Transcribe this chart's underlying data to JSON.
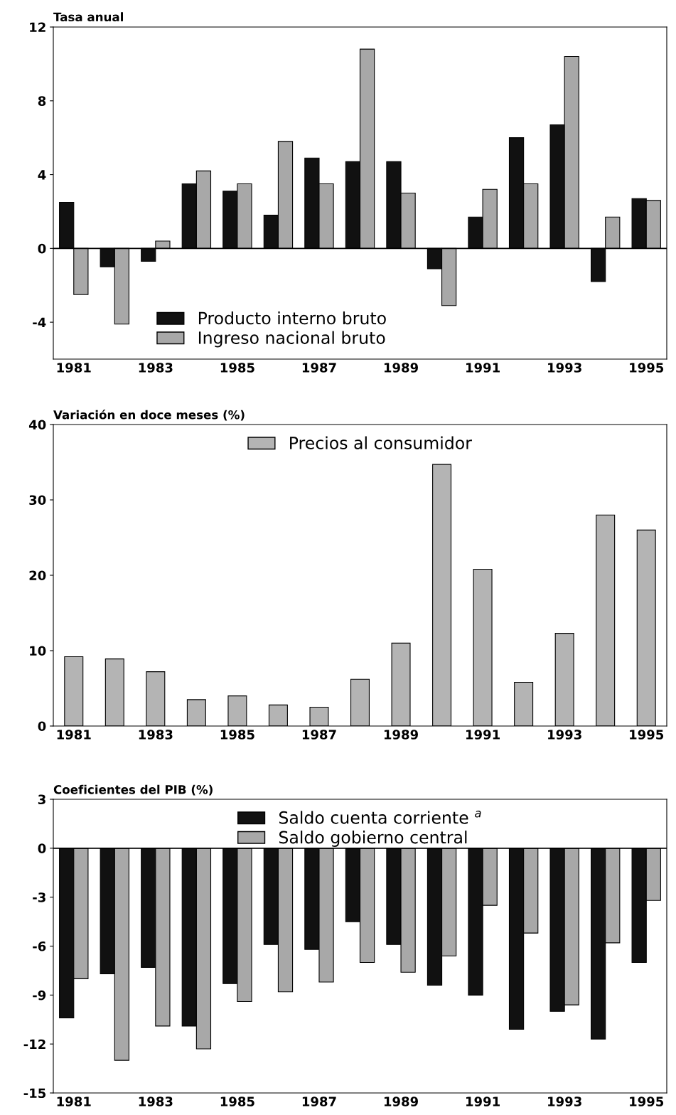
{
  "chart_data": [
    {
      "type": "bar",
      "ylabel": "Tasa anual",
      "categories": [
        "1981",
        null,
        "1983",
        null,
        "1985",
        null,
        "1987",
        null,
        "1989",
        null,
        "1991",
        null,
        "1993",
        null,
        "1995"
      ],
      "series": [
        {
          "name": "Producto interno bruto",
          "color": "#111111",
          "values": [
            2.5,
            -1.0,
            -0.7,
            3.5,
            3.1,
            1.8,
            4.9,
            4.7,
            4.7,
            -1.1,
            1.7,
            6.0,
            6.7,
            -1.8,
            2.7
          ]
        },
        {
          "name": "Ingreso nacional bruto",
          "color": "#a8a8a8",
          "values": [
            -2.5,
            -4.1,
            0.4,
            4.2,
            3.5,
            5.8,
            3.5,
            10.8,
            3.0,
            -3.1,
            3.2,
            3.5,
            10.4,
            1.7,
            2.6
          ]
        }
      ],
      "ylim": [
        -6,
        12
      ],
      "yticks": [
        -4,
        0,
        4,
        8,
        12
      ],
      "ref_lines": [
        {
          "axis": "y",
          "value": 0
        }
      ],
      "legend": "bottom left",
      "grid": false
    },
    {
      "type": "bar",
      "ylabel": "Variación en doce meses (%)",
      "categories": [
        "1981",
        null,
        "1983",
        null,
        "1985",
        null,
        "1987",
        null,
        "1989",
        null,
        "1991",
        null,
        "1993",
        null,
        "1995"
      ],
      "series": [
        {
          "name": "Precios al consumidor",
          "color": "#b4b4b4",
          "values": [
            9.2,
            8.9,
            7.2,
            3.5,
            4.0,
            2.8,
            2.5,
            6.2,
            11.0,
            34.7,
            20.8,
            5.8,
            12.3,
            28.0,
            26.0
          ]
        }
      ],
      "ylim": [
        0,
        40
      ],
      "yticks": [
        0,
        10,
        20,
        30,
        40
      ],
      "legend": "top",
      "grid": false
    },
    {
      "type": "bar",
      "ylabel": "Coeficientes del PIB (%)",
      "categories": [
        "1981",
        null,
        "1983",
        null,
        "1985",
        null,
        "1987",
        null,
        "1989",
        null,
        "1991",
        null,
        "1993",
        null,
        "1995"
      ],
      "series": [
        {
          "name": "Saldo cuenta corriente $^{a}$",
          "color": "#111111",
          "values": [
            -10.4,
            -7.7,
            -7.3,
            -10.9,
            -8.3,
            -5.9,
            -6.2,
            -4.5,
            -5.9,
            -8.4,
            -9.0,
            -11.1,
            -10.0,
            -11.7,
            -7.0
          ]
        },
        {
          "name": "Saldo gobierno central",
          "color": "#a8a8a8",
          "values": [
            -8.0,
            -13.0,
            -10.9,
            -12.3,
            -9.4,
            -8.8,
            -8.2,
            -7.0,
            -7.6,
            -6.6,
            -3.5,
            -5.2,
            -9.6,
            -5.8,
            -3.2
          ]
        }
      ],
      "ylim": [
        -15,
        3
      ],
      "yticks": [
        -15,
        -12,
        -9,
        -6,
        -3,
        0,
        3
      ],
      "ref_lines": [
        {
          "axis": "y",
          "value": 0
        }
      ],
      "legend": "top",
      "grid": false
    }
  ]
}
